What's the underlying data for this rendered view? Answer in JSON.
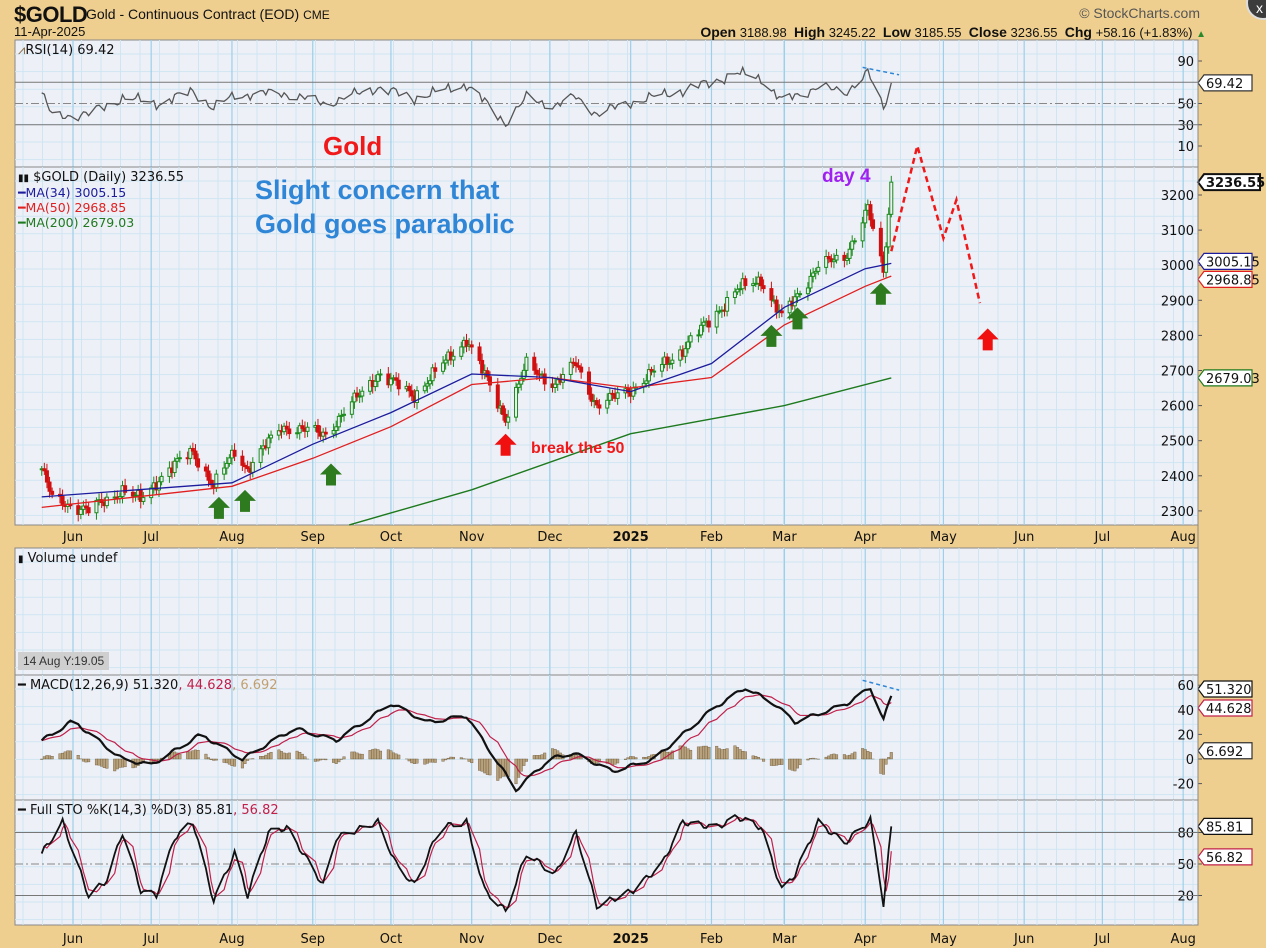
{
  "header": {
    "symbol": "$GOLD",
    "description": "Gold - Continuous Contract (EOD)",
    "exchange": "CME",
    "date": "11-Apr-2025",
    "watermark": "© StockCharts.com",
    "open_label": "Open",
    "open": "3188.98",
    "high_label": "High",
    "high": "3245.22",
    "low_label": "Low",
    "low": "3185.55",
    "close_label": "Close",
    "close": "3236.55",
    "chg_label": "Chg",
    "chg": "+58.16 (+1.83%)",
    "close_button": "x"
  },
  "rsi_legend": "RSI(14) 69.42",
  "price_legend": {
    "main": "$GOLD (Daily) 3236.55",
    "ma34": "MA(34) 3005.15",
    "ma50": "MA(50) 2968.85",
    "ma200": "MA(200) 2679.03"
  },
  "volume_legend": "Volume undef",
  "macd_legend": {
    "macd": "MACD(12,26,9) 51.320",
    "signal": ", 44.628",
    "hist": ", 6.692"
  },
  "sto_legend": {
    "k": "Full STO %K(14,3) %D(3) 85.81",
    "d": ", 56.82"
  },
  "annotations": {
    "title": "Gold",
    "concern_line1": "Slight concern that",
    "concern_line2": "Gold goes parabolic",
    "day4": "day 4",
    "break50": "break the 50"
  },
  "crosshair_readout": "14 Aug Y:19.05",
  "colors": {
    "up": "#1a8a1a",
    "down": "#d01010",
    "ma34": "#1c1c9c",
    "ma50": "#e02020",
    "ma200": "#1e7a1e",
    "annotation_red": "#f01818",
    "annotation_blue": "#2f86d6",
    "annotation_purple": "#a020f0",
    "signal": "#c0204a",
    "hist": "#a08860",
    "arrow_green": "#2e7a1e"
  },
  "chart_data": {
    "type": "candlestick",
    "x_axis": {
      "ticks": [
        {
          "label": "Jun",
          "date": "2024-06-01"
        },
        {
          "label": "Jul",
          "date": "2024-07-01"
        },
        {
          "label": "Aug",
          "date": "2024-08-01"
        },
        {
          "label": "Sep",
          "date": "2024-09-01"
        },
        {
          "label": "Oct",
          "date": "2024-10-01"
        },
        {
          "label": "Nov",
          "date": "2024-11-01"
        },
        {
          "label": "Dec",
          "date": "2024-12-01"
        },
        {
          "label": "2025",
          "date": "2025-01-01",
          "bold": true
        },
        {
          "label": "Feb",
          "date": "2025-02-01"
        },
        {
          "label": "Mar",
          "date": "2025-03-01"
        },
        {
          "label": "Apr",
          "date": "2025-04-01"
        },
        {
          "label": "May",
          "date": "2025-05-01"
        },
        {
          "label": "Jun",
          "date": "2025-06-01"
        },
        {
          "label": "Jul",
          "date": "2025-07-01"
        },
        {
          "label": "Aug",
          "date": "2025-08-01"
        }
      ]
    },
    "price": {
      "ylim": [
        2260,
        3280
      ],
      "yticks": [
        "2300",
        "2400",
        "2500",
        "2600",
        "2700",
        "2800",
        "2900",
        "3000",
        "3100",
        "3200"
      ],
      "last_close_tag": "3236.55",
      "close_path": [
        [
          "2024-05-20",
          2420
        ],
        [
          "2024-05-24",
          2335
        ],
        [
          "2024-06-07",
          2300
        ],
        [
          "2024-06-20",
          2360
        ],
        [
          "2024-06-27",
          2330
        ],
        [
          "2024-07-05",
          2400
        ],
        [
          "2024-07-17",
          2470
        ],
        [
          "2024-07-25",
          2370
        ],
        [
          "2024-08-02",
          2470
        ],
        [
          "2024-08-07",
          2420
        ],
        [
          "2024-08-20",
          2540
        ],
        [
          "2024-09-06",
          2520
        ],
        [
          "2024-09-26",
          2690
        ],
        [
          "2024-10-10",
          2630
        ],
        [
          "2024-10-30",
          2790
        ],
        [
          "2024-11-14",
          2565
        ],
        [
          "2024-11-22",
          2715
        ],
        [
          "2024-12-03",
          2660
        ],
        [
          "2024-12-11",
          2720
        ],
        [
          "2024-12-19",
          2600
        ],
        [
          "2025-01-02",
          2650
        ],
        [
          "2025-01-21",
          2760
        ],
        [
          "2025-02-11",
          2930
        ],
        [
          "2025-02-20",
          2960
        ],
        [
          "2025-02-28",
          2850
        ],
        [
          "2025-03-14",
          3000
        ],
        [
          "2025-03-24",
          3020
        ],
        [
          "2025-04-02",
          3160
        ],
        [
          "2025-04-08",
          2980
        ],
        [
          "2025-04-11",
          3236.55
        ]
      ],
      "ma34": {
        "tag": "3005.15",
        "path": [
          [
            "2024-05-20",
            2340
          ],
          [
            "2024-08-01",
            2380
          ],
          [
            "2024-09-01",
            2490
          ],
          [
            "2024-10-01",
            2580
          ],
          [
            "2024-11-01",
            2690
          ],
          [
            "2024-12-01",
            2680
          ],
          [
            "2025-01-01",
            2640
          ],
          [
            "2025-02-01",
            2720
          ],
          [
            "2025-03-01",
            2880
          ],
          [
            "2025-04-01",
            2990
          ],
          [
            "2025-04-11",
            3005.15
          ]
        ]
      },
      "ma50": {
        "tag": "2968.85",
        "path": [
          [
            "2024-05-20",
            2310
          ],
          [
            "2024-08-01",
            2370
          ],
          [
            "2024-09-01",
            2450
          ],
          [
            "2024-10-01",
            2540
          ],
          [
            "2024-11-01",
            2660
          ],
          [
            "2024-12-01",
            2680
          ],
          [
            "2025-01-01",
            2650
          ],
          [
            "2025-02-01",
            2680
          ],
          [
            "2025-03-01",
            2830
          ],
          [
            "2025-04-01",
            2940
          ],
          [
            "2025-04-11",
            2968.85
          ]
        ]
      },
      "ma200": {
        "tag": "2679.03",
        "path": [
          [
            "2024-09-15",
            2260
          ],
          [
            "2024-11-01",
            2360
          ],
          [
            "2025-01-01",
            2520
          ],
          [
            "2025-03-01",
            2600
          ],
          [
            "2025-04-11",
            2679.03
          ]
        ]
      },
      "forecast_path": [
        [
          "2025-04-11",
          3040
        ],
        [
          "2025-04-21",
          3340
        ],
        [
          "2025-05-01",
          3077
        ],
        [
          "2025-05-06",
          3186
        ],
        [
          "2025-05-15",
          2892
        ]
      ],
      "green_arrows": [
        [
          "2024-07-27",
          2300
        ],
        [
          "2024-08-06",
          2320
        ],
        [
          "2024-09-08",
          2395
        ],
        [
          "2025-02-24",
          2790
        ],
        [
          "2025-03-06",
          2840
        ],
        [
          "2025-04-07",
          2910
        ]
      ],
      "red_arrows": [
        [
          "2024-11-14",
          2480
        ],
        [
          "2025-05-18",
          2780
        ]
      ]
    },
    "rsi": {
      "ylim": [
        0,
        100
      ],
      "yticks": [
        "90",
        "50",
        "30",
        "10"
      ],
      "tag": "69.42",
      "path": [
        [
          "2024-05-20",
          60
        ],
        [
          "2024-05-24",
          38
        ],
        [
          "2024-06-07",
          40
        ],
        [
          "2024-06-20",
          55
        ],
        [
          "2024-07-05",
          50
        ],
        [
          "2024-07-17",
          62
        ],
        [
          "2024-07-25",
          45
        ],
        [
          "2024-08-02",
          58
        ],
        [
          "2024-08-20",
          60
        ],
        [
          "2024-09-06",
          50
        ],
        [
          "2024-09-26",
          65
        ],
        [
          "2024-10-10",
          55
        ],
        [
          "2024-10-30",
          68
        ],
        [
          "2024-11-14",
          32
        ],
        [
          "2024-11-22",
          55
        ],
        [
          "2024-12-03",
          48
        ],
        [
          "2024-12-11",
          56
        ],
        [
          "2024-12-19",
          40
        ],
        [
          "2025-01-02",
          52
        ],
        [
          "2025-01-21",
          62
        ],
        [
          "2025-02-11",
          78
        ],
        [
          "2025-02-20",
          74
        ],
        [
          "2025-02-28",
          52
        ],
        [
          "2025-03-14",
          66
        ],
        [
          "2025-03-24",
          60
        ],
        [
          "2025-04-02",
          79
        ],
        [
          "2025-04-08",
          45
        ],
        [
          "2025-04-11",
          69.42
        ]
      ]
    },
    "macd": {
      "yticks": [
        "60",
        "40",
        "20",
        "0",
        "-20"
      ],
      "tags": {
        "macd": "51.320",
        "signal": "44.628",
        "hist": "6.692"
      },
      "path": [
        [
          "2024-05-20",
          15
        ],
        [
          "2024-06-01",
          31
        ],
        [
          "2024-06-20",
          0
        ],
        [
          "2024-07-01",
          -5
        ],
        [
          "2024-07-20",
          20
        ],
        [
          "2024-08-05",
          0
        ],
        [
          "2024-08-25",
          25
        ],
        [
          "2024-09-10",
          15
        ],
        [
          "2024-10-01",
          45
        ],
        [
          "2024-10-15",
          30
        ],
        [
          "2024-10-30",
          35
        ],
        [
          "2024-11-18",
          -25
        ],
        [
          "2024-12-01",
          0
        ],
        [
          "2024-12-10",
          5
        ],
        [
          "2024-12-25",
          -10
        ],
        [
          "2025-01-10",
          0
        ],
        [
          "2025-02-01",
          40
        ],
        [
          "2025-02-14",
          58
        ],
        [
          "2025-02-25",
          45
        ],
        [
          "2025-03-05",
          30
        ],
        [
          "2025-03-25",
          45
        ],
        [
          "2025-04-03",
          58
        ],
        [
          "2025-04-08",
          32
        ],
        [
          "2025-04-11",
          51.32
        ]
      ]
    },
    "sto": {
      "yticks": [
        "80",
        "50",
        "20"
      ],
      "tags": {
        "k": "85.81",
        "d": "56.82"
      },
      "path": [
        [
          "2024-05-20",
          60
        ],
        [
          "2024-05-28",
          90
        ],
        [
          "2024-06-07",
          20
        ],
        [
          "2024-06-14",
          35
        ],
        [
          "2024-06-20",
          80
        ],
        [
          "2024-06-27",
          25
        ],
        [
          "2024-07-03",
          20
        ],
        [
          "2024-07-10",
          75
        ],
        [
          "2024-07-17",
          90
        ],
        [
          "2024-07-25",
          15
        ],
        [
          "2024-08-02",
          60
        ],
        [
          "2024-08-07",
          20
        ],
        [
          "2024-08-15",
          80
        ],
        [
          "2024-08-22",
          85
        ],
        [
          "2024-09-05",
          30
        ],
        [
          "2024-09-10",
          75
        ],
        [
          "2024-09-26",
          90
        ],
        [
          "2024-10-03",
          50
        ],
        [
          "2024-10-10",
          30
        ],
        [
          "2024-10-20",
          85
        ],
        [
          "2024-10-30",
          90
        ],
        [
          "2024-11-06",
          25
        ],
        [
          "2024-11-14",
          5
        ],
        [
          "2024-11-22",
          60
        ],
        [
          "2024-12-03",
          40
        ],
        [
          "2024-12-11",
          80
        ],
        [
          "2024-12-19",
          10
        ],
        [
          "2025-01-02",
          25
        ],
        [
          "2025-01-13",
          50
        ],
        [
          "2025-01-21",
          90
        ],
        [
          "2025-02-03",
          85
        ],
        [
          "2025-02-11",
          95
        ],
        [
          "2025-02-20",
          85
        ],
        [
          "2025-02-28",
          25
        ],
        [
          "2025-03-05",
          40
        ],
        [
          "2025-03-14",
          90
        ],
        [
          "2025-03-24",
          70
        ],
        [
          "2025-04-03",
          92
        ],
        [
          "2025-04-08",
          12
        ],
        [
          "2025-04-11",
          85.81
        ]
      ]
    }
  }
}
